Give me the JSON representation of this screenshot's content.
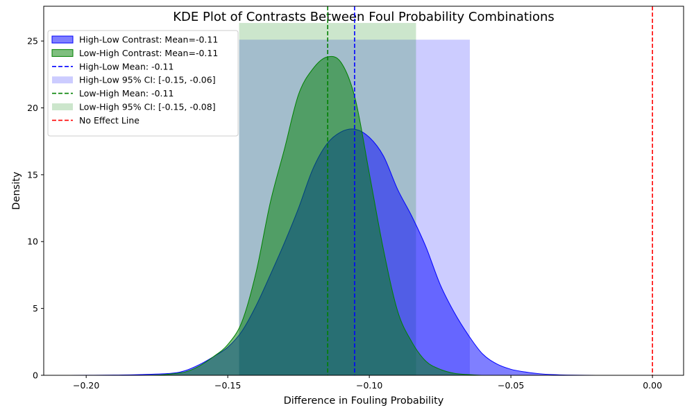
{
  "chart_data": {
    "type": "area",
    "title": "KDE Plot of Contrasts Between Foul Probability Combinations",
    "xlabel": "Difference in Fouling Probability",
    "ylabel": "Density",
    "xlim": [
      -0.215,
      0.011
    ],
    "ylim": [
      0,
      27.6
    ],
    "xticks": [
      -0.2,
      -0.15,
      -0.1,
      -0.05,
      0.0
    ],
    "xtick_labels": [
      "−0.20",
      "−0.15",
      "−0.10",
      "−0.05",
      "0.00"
    ],
    "yticks": [
      0,
      5,
      10,
      15,
      20,
      25
    ],
    "ytick_labels": [
      "0",
      "5",
      "10",
      "15",
      "20",
      "25"
    ],
    "grid": false,
    "legend_position": "top-left",
    "legend": [
      {
        "label": "High-Low Contrast: Mean=-0.11",
        "kind": "patch",
        "fill": "#0000ff",
        "fill_opacity": 0.5,
        "stroke": "#0000ff"
      },
      {
        "label": "Low-High Contrast: Mean=-0.11",
        "kind": "patch",
        "fill": "#008000",
        "fill_opacity": 0.5,
        "stroke": "#008000"
      },
      {
        "label": "High-Low Mean: -0.11",
        "kind": "dashed",
        "stroke": "#0000ff"
      },
      {
        "label": "High-Low 95% CI: [-0.15, -0.06]",
        "kind": "patch",
        "fill": "#0000ff",
        "fill_opacity": 0.2,
        "stroke": "none"
      },
      {
        "label": "Low-High Mean: -0.11",
        "kind": "dashed",
        "stroke": "#008000"
      },
      {
        "label": "Low-High 95% CI: [-0.15, -0.08]",
        "kind": "patch",
        "fill": "#008000",
        "fill_opacity": 0.2,
        "stroke": "none"
      },
      {
        "label": "No Effect Line",
        "kind": "dashed",
        "stroke": "#ff0000"
      }
    ],
    "ci_bands": [
      {
        "name": "High-Low 95% CI",
        "x0": -0.146,
        "x1": -0.0645,
        "height": 25.1,
        "color": "#0000ff",
        "opacity": 0.2
      },
      {
        "name": "Low-High 95% CI",
        "x0": -0.146,
        "x1": -0.0835,
        "height": 26.35,
        "color": "#008000",
        "opacity": 0.2
      }
    ],
    "mean_lines": [
      {
        "name": "High-Low Mean",
        "x": -0.1052,
        "color": "#0000ff"
      },
      {
        "name": "Low-High Mean",
        "x": -0.1147,
        "color": "#008000"
      },
      {
        "name": "No Effect Line",
        "x": 0.0,
        "color": "#ff0000"
      }
    ],
    "series": [
      {
        "name": "High-Low Contrast",
        "color": "#0000ff",
        "fill_opacity": 0.5,
        "x": [
          -0.206,
          -0.19,
          -0.18,
          -0.17,
          -0.165,
          -0.16,
          -0.155,
          -0.15,
          -0.145,
          -0.14,
          -0.135,
          -0.13,
          -0.125,
          -0.12,
          -0.115,
          -0.11,
          -0.105,
          -0.1,
          -0.095,
          -0.09,
          -0.085,
          -0.08,
          -0.075,
          -0.07,
          -0.065,
          -0.06,
          -0.055,
          -0.05,
          -0.045,
          -0.04,
          -0.035,
          -0.03,
          -0.02,
          -0.011
        ],
        "y": [
          0.0,
          0.02,
          0.06,
          0.15,
          0.35,
          0.8,
          1.4,
          2.1,
          3.3,
          5.2,
          7.5,
          9.9,
          12.5,
          15.4,
          17.3,
          18.2,
          18.4,
          17.8,
          16.4,
          13.9,
          11.9,
          9.6,
          6.8,
          4.7,
          3.0,
          1.6,
          0.85,
          0.45,
          0.25,
          0.12,
          0.05,
          0.02,
          0.0,
          0.0
        ]
      },
      {
        "name": "Low-High Contrast",
        "color": "#008000",
        "fill_opacity": 0.5,
        "x": [
          -0.183,
          -0.175,
          -0.17,
          -0.165,
          -0.16,
          -0.155,
          -0.15,
          -0.145,
          -0.14,
          -0.135,
          -0.13,
          -0.125,
          -0.12,
          -0.115,
          -0.11,
          -0.105,
          -0.1,
          -0.095,
          -0.09,
          -0.085,
          -0.08,
          -0.075,
          -0.07,
          -0.065,
          -0.06
        ],
        "y": [
          0.0,
          0.02,
          0.1,
          0.25,
          0.7,
          1.4,
          2.3,
          4.0,
          7.7,
          12.9,
          16.9,
          21.0,
          22.9,
          23.8,
          23.4,
          20.7,
          15.1,
          9.4,
          4.8,
          2.5,
          1.05,
          0.45,
          0.15,
          0.05,
          0.0
        ]
      }
    ]
  }
}
